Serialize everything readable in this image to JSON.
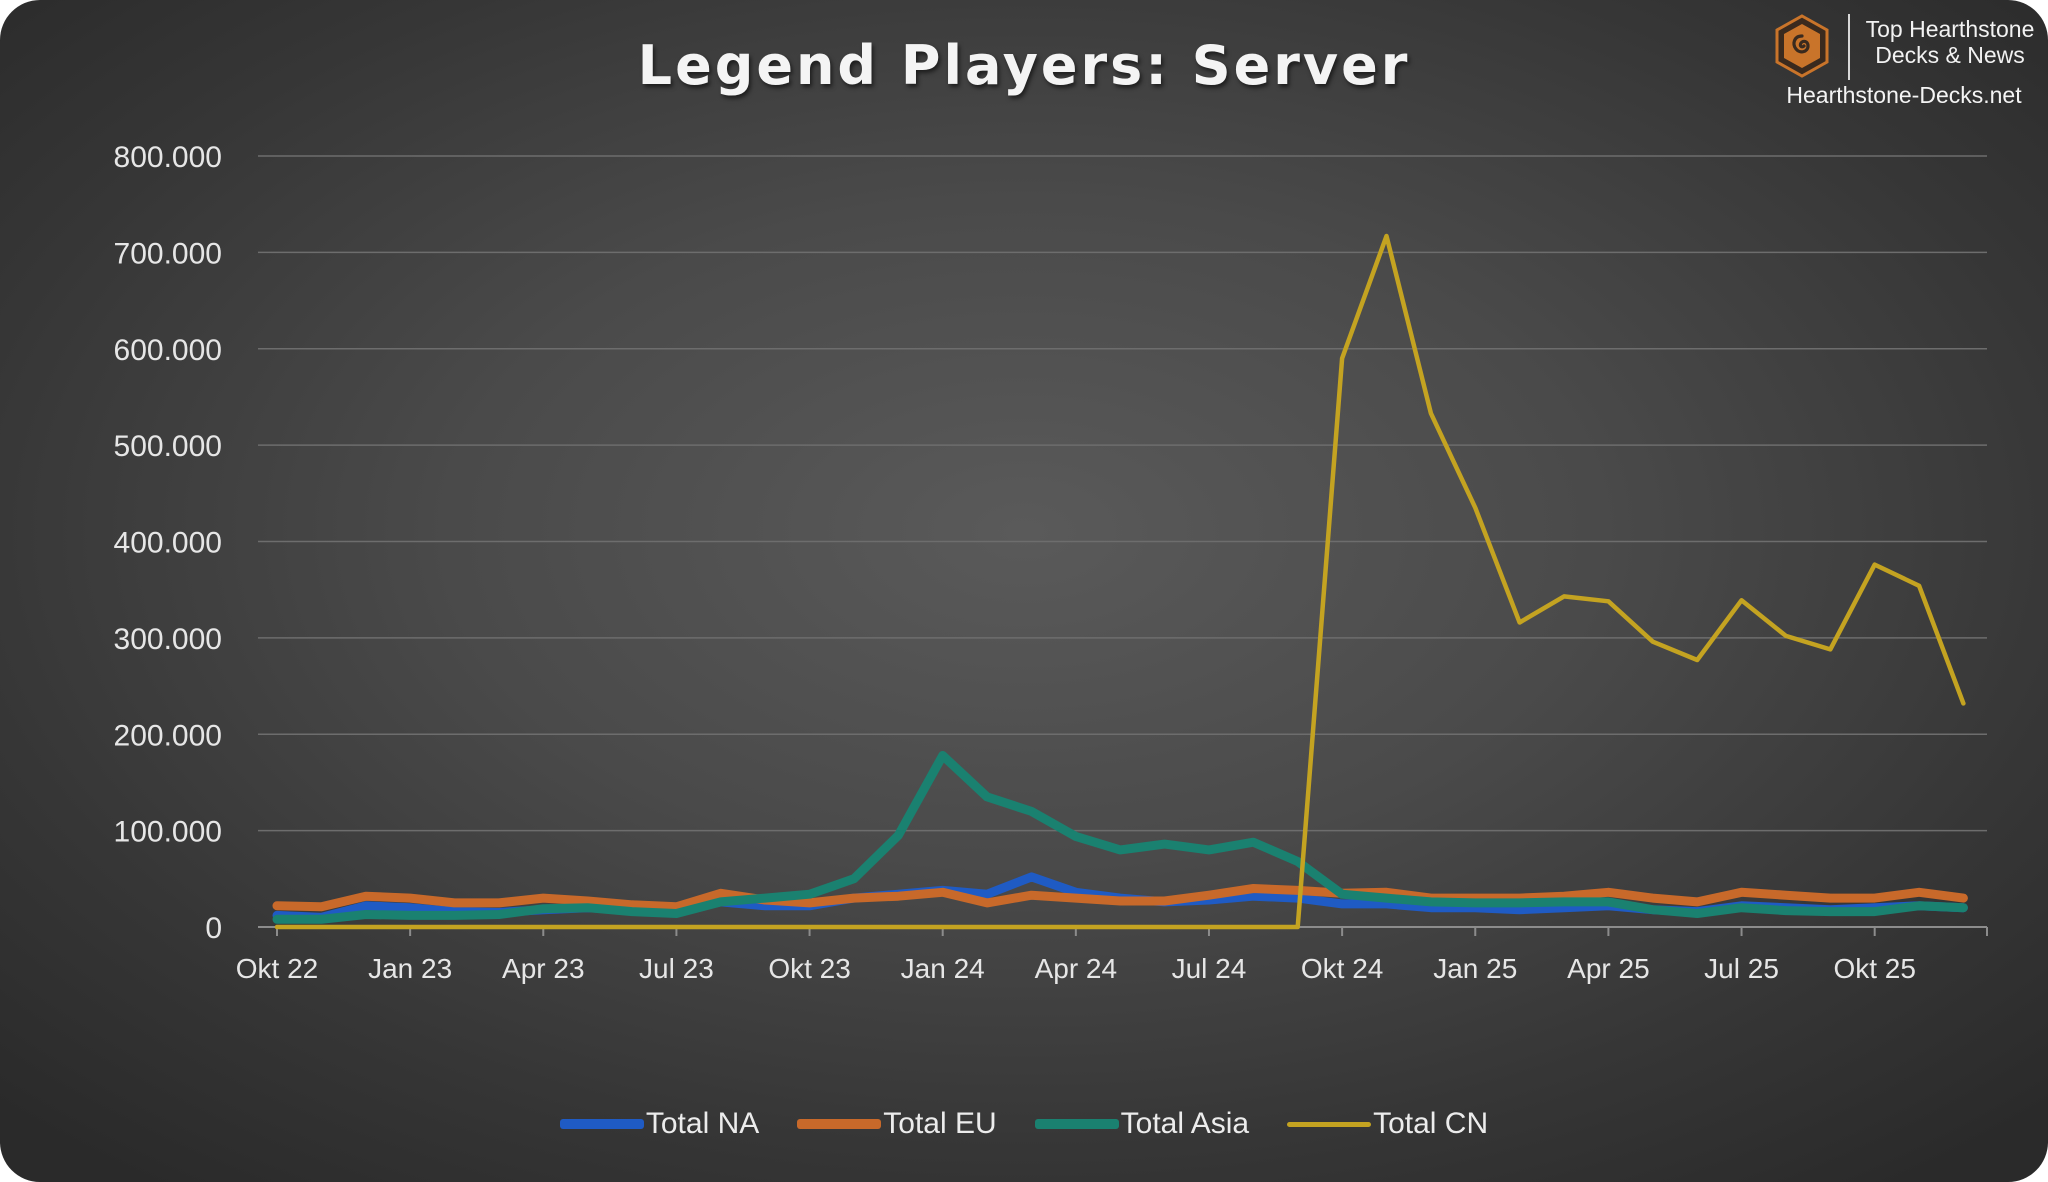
{
  "title": "Legend Players: Server",
  "brand": {
    "line1": "Top Hearthstone",
    "line2": "Decks & News",
    "site": "Hearthstone-Decks.net",
    "logo_icon": "hearthstone-swirl-logo",
    "logo_color": "#c9742a"
  },
  "chart_data": {
    "type": "line",
    "title": "Legend Players: Server",
    "xlabel": "",
    "ylabel": "",
    "ylim": [
      0,
      800000
    ],
    "yticks": [
      0,
      100000,
      200000,
      300000,
      400000,
      500000,
      600000,
      700000,
      800000
    ],
    "ytick_labels": [
      "0",
      "100.000",
      "200.000",
      "300.000",
      "400.000",
      "500.000",
      "600.000",
      "700.000",
      "800.000"
    ],
    "xtick_labels": [
      "Okt 22",
      "Jan 23",
      "Apr 23",
      "Jul 23",
      "Okt 23",
      "Jan 24",
      "Apr 24",
      "Jul 24",
      "Okt 24",
      "Jan 25",
      "Apr 25",
      "Jul 25",
      "Okt 25"
    ],
    "x": [
      "2022-10",
      "2022-11",
      "2022-12",
      "2023-01",
      "2023-02",
      "2023-03",
      "2023-04",
      "2023-05",
      "2023-06",
      "2023-07",
      "2023-08",
      "2023-09",
      "2023-10",
      "2023-11",
      "2023-12",
      "2024-01",
      "2024-02",
      "2024-03",
      "2024-04",
      "2024-05",
      "2024-06",
      "2024-07",
      "2024-08",
      "2024-09",
      "2024-10",
      "2024-11",
      "2024-12",
      "2025-01",
      "2025-02",
      "2025-03",
      "2025-04",
      "2025-05",
      "2025-06",
      "2025-07",
      "2025-08",
      "2025-09",
      "2025-10",
      "2025-11",
      "2025-12"
    ],
    "grid": true,
    "legend_position": "bottom",
    "series": [
      {
        "name": "Total NA",
        "color": "#1f5bc4",
        "values": [
          12000,
          10000,
          22000,
          20000,
          16000,
          15000,
          18000,
          20000,
          18000,
          16000,
          26000,
          22000,
          22000,
          30000,
          34000,
          38000,
          34000,
          52000,
          36000,
          30000,
          26000,
          28000,
          32000,
          30000,
          24000,
          24000,
          20000,
          20000,
          18000,
          20000,
          22000,
          18000,
          16000,
          22000,
          20000,
          18000,
          20000,
          22000,
          20000
        ]
      },
      {
        "name": "Total EU",
        "color": "#c8692a",
        "values": [
          22000,
          21000,
          32000,
          30000,
          25000,
          25000,
          30000,
          27000,
          23000,
          21000,
          35000,
          28000,
          25000,
          30000,
          32000,
          36000,
          25000,
          33000,
          30000,
          27000,
          27000,
          33000,
          40000,
          38000,
          35000,
          36000,
          30000,
          30000,
          30000,
          32000,
          36000,
          30000,
          26000,
          36000,
          33000,
          30000,
          30000,
          36000,
          30000
        ]
      },
      {
        "name": "Total Asia",
        "color": "#1a8170",
        "values": [
          8000,
          8000,
          13000,
          12000,
          12000,
          13000,
          19000,
          20000,
          16000,
          14000,
          26000,
          30000,
          34000,
          50000,
          95000,
          178000,
          135000,
          120000,
          94000,
          80000,
          86000,
          80000,
          88000,
          68000,
          34000,
          30000,
          26000,
          25000,
          25000,
          26000,
          26000,
          18000,
          14000,
          20000,
          17000,
          16000,
          16000,
          22000,
          20000
        ]
      },
      {
        "name": "Total CN",
        "color": "#c4a321",
        "values": [
          0,
          0,
          0,
          0,
          0,
          0,
          0,
          0,
          0,
          0,
          0,
          0,
          0,
          0,
          0,
          0,
          0,
          0,
          0,
          0,
          0,
          0,
          0,
          0,
          590000,
          717000,
          533000,
          435000,
          316000,
          343000,
          338000,
          296000,
          277000,
          339000,
          302000,
          288000,
          376000,
          354000,
          232000
        ]
      }
    ]
  }
}
